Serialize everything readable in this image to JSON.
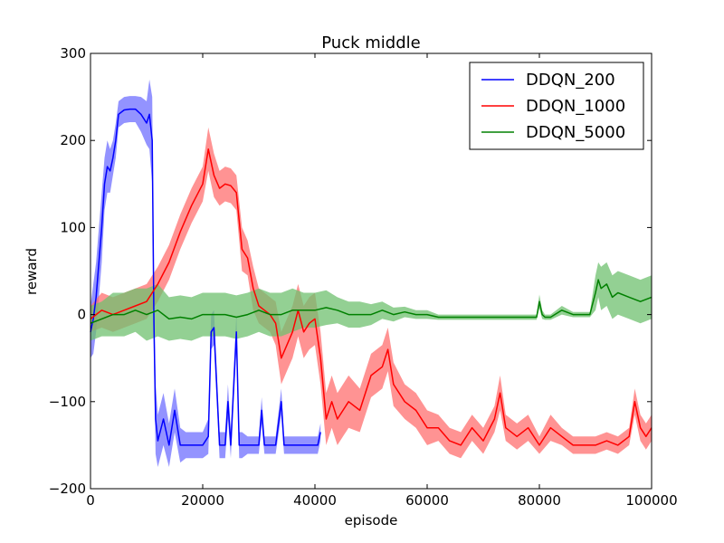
{
  "chart_data": {
    "type": "line",
    "title": "Puck middle",
    "xlabel": "episode",
    "ylabel": "reward",
    "xlim": [
      0,
      100000
    ],
    "ylim": [
      -200,
      300
    ],
    "xticks": [
      0,
      20000,
      40000,
      60000,
      80000,
      100000
    ],
    "yticks": [
      -200,
      -100,
      0,
      100,
      200,
      300
    ],
    "xtick_labels": [
      "0",
      "20000",
      "40000",
      "60000",
      "80000",
      "100000"
    ],
    "ytick_labels": [
      "−200",
      "−100",
      "0",
      "100",
      "200",
      "300"
    ],
    "grid": false,
    "legend_position": "top-right",
    "series": [
      {
        "name": "DDQN_200",
        "color": "#0000ff",
        "band_color": "#6f6fff",
        "x": [
          0,
          500,
          1000,
          1500,
          2000,
          2500,
          3000,
          3500,
          4000,
          4500,
          5000,
          6000,
          7000,
          8000,
          9000,
          10000,
          10500,
          11000,
          11300,
          11600,
          12000,
          13000,
          14000,
          15000,
          16000,
          17000,
          18000,
          19000,
          20000,
          21000,
          21500,
          22000,
          23000,
          23500,
          24000,
          24500,
          25000,
          26000,
          26500,
          27000,
          28000,
          29000,
          30000,
          30500,
          31000,
          32000,
          33000,
          34000,
          34500,
          35000,
          36000,
          37000,
          38000,
          39000,
          40000,
          40500,
          41000
        ],
        "y": [
          -20,
          -5,
          20,
          60,
          100,
          150,
          170,
          165,
          180,
          200,
          230,
          235,
          236,
          236,
          230,
          220,
          230,
          200,
          -10,
          -120,
          -145,
          -120,
          -150,
          -110,
          -150,
          -150,
          -150,
          -150,
          -150,
          -140,
          -20,
          -15,
          -150,
          -150,
          -150,
          -100,
          -150,
          -20,
          -150,
          -150,
          -150,
          -150,
          -150,
          -110,
          -150,
          -150,
          -150,
          -100,
          -150,
          -150,
          -150,
          -150,
          -150,
          -150,
          -150,
          -150,
          -135
        ],
        "band": [
          30,
          40,
          40,
          40,
          40,
          30,
          30,
          25,
          20,
          20,
          15,
          15,
          15,
          15,
          20,
          25,
          40,
          50,
          40,
          40,
          30,
          30,
          25,
          25,
          20,
          15,
          15,
          15,
          15,
          20,
          20,
          20,
          15,
          15,
          15,
          20,
          15,
          20,
          15,
          15,
          10,
          10,
          10,
          15,
          10,
          10,
          10,
          15,
          10,
          10,
          10,
          10,
          10,
          10,
          10,
          10,
          10
        ]
      },
      {
        "name": "DDQN_1000",
        "color": "#ff0000",
        "band_color": "#ff6f6f",
        "x": [
          0,
          2000,
          4000,
          6000,
          8000,
          10000,
          12000,
          14000,
          16000,
          18000,
          20000,
          21000,
          22000,
          23000,
          24000,
          25000,
          26000,
          27000,
          28000,
          29000,
          30000,
          31000,
          32000,
          33000,
          34000,
          35000,
          36000,
          37000,
          38000,
          39000,
          40000,
          41000,
          42000,
          43000,
          44000,
          46000,
          48000,
          50000,
          52000,
          53000,
          54000,
          56000,
          58000,
          60000,
          62000,
          64000,
          66000,
          68000,
          70000,
          72000,
          73000,
          74000,
          76000,
          78000,
          80000,
          82000,
          84000,
          86000,
          88000,
          90000,
          92000,
          94000,
          96000,
          97000,
          98000,
          99000,
          100000
        ],
        "y": [
          -5,
          5,
          0,
          5,
          10,
          15,
          35,
          60,
          95,
          125,
          150,
          190,
          160,
          145,
          150,
          148,
          140,
          75,
          65,
          30,
          10,
          5,
          0,
          -10,
          -50,
          -35,
          -20,
          5,
          -20,
          -10,
          -5,
          -50,
          -120,
          -100,
          -120,
          -100,
          -110,
          -70,
          -60,
          -40,
          -80,
          -100,
          -110,
          -130,
          -130,
          -145,
          -150,
          -130,
          -145,
          -120,
          -90,
          -130,
          -140,
          -130,
          -150,
          -130,
          -140,
          -150,
          -150,
          -150,
          -145,
          -150,
          -140,
          -100,
          -130,
          -140,
          -130
        ],
        "band": [
          15,
          20,
          20,
          20,
          20,
          20,
          20,
          20,
          20,
          20,
          20,
          25,
          25,
          20,
          20,
          20,
          20,
          25,
          20,
          25,
          20,
          20,
          20,
          25,
          30,
          30,
          30,
          30,
          30,
          30,
          30,
          30,
          30,
          30,
          30,
          30,
          25,
          25,
          25,
          25,
          25,
          20,
          20,
          20,
          15,
          15,
          15,
          15,
          15,
          15,
          20,
          15,
          15,
          15,
          10,
          15,
          10,
          10,
          10,
          10,
          10,
          10,
          10,
          15,
          15,
          15,
          15
        ]
      },
      {
        "name": "DDQN_5000",
        "color": "#008000",
        "band_color": "#6fc06f",
        "x": [
          0,
          2000,
          4000,
          6000,
          8000,
          10000,
          12000,
          14000,
          16000,
          18000,
          20000,
          22000,
          24000,
          26000,
          28000,
          30000,
          32000,
          34000,
          36000,
          38000,
          40000,
          42000,
          44000,
          46000,
          48000,
          50000,
          52000,
          54000,
          56000,
          58000,
          60000,
          62000,
          64000,
          66000,
          68000,
          70000,
          72000,
          74000,
          76000,
          78000,
          79500,
          80000,
          80500,
          81000,
          82000,
          84000,
          86000,
          88000,
          89000,
          90000,
          90500,
          91000,
          92000,
          93000,
          94000,
          96000,
          98000,
          100000
        ],
        "y": [
          -10,
          -5,
          0,
          0,
          5,
          0,
          5,
          -5,
          -3,
          -5,
          0,
          0,
          0,
          -3,
          0,
          5,
          0,
          0,
          5,
          5,
          5,
          8,
          5,
          0,
          0,
          0,
          5,
          0,
          3,
          0,
          0,
          -3,
          -3,
          -3,
          -3,
          -3,
          -3,
          -3,
          -3,
          -3,
          -3,
          15,
          0,
          -3,
          -3,
          5,
          0,
          0,
          0,
          25,
          40,
          30,
          35,
          20,
          25,
          20,
          15,
          20
        ],
        "band": [
          20,
          20,
          25,
          25,
          25,
          30,
          30,
          25,
          25,
          25,
          25,
          25,
          25,
          25,
          25,
          25,
          25,
          25,
          25,
          20,
          20,
          20,
          15,
          15,
          15,
          12,
          10,
          8,
          6,
          5,
          5,
          3,
          3,
          3,
          3,
          3,
          3,
          3,
          3,
          3,
          3,
          8,
          5,
          3,
          3,
          5,
          3,
          3,
          3,
          20,
          20,
          25,
          25,
          25,
          25,
          25,
          25,
          25
        ]
      }
    ]
  }
}
